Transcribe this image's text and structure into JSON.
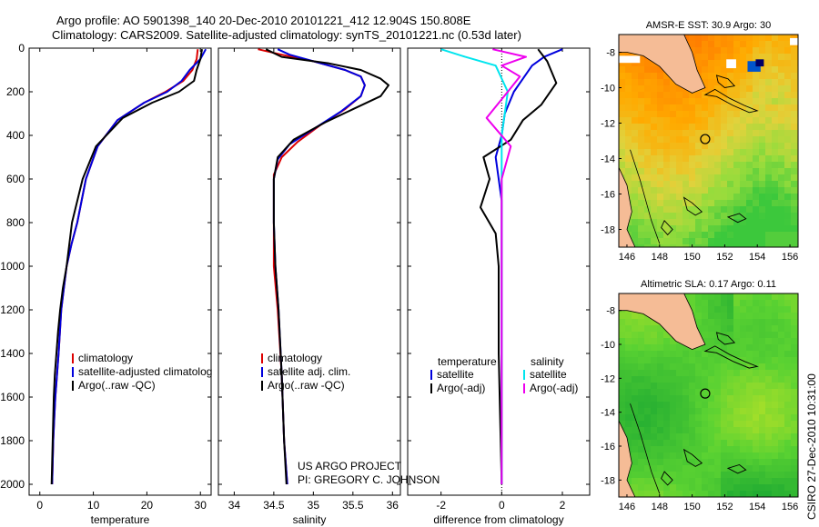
{
  "header": {
    "line1": "Argo profile: AO 5901398_140 20-Dec-2010 20101221_412 12.904S 150.808E",
    "line2": "Climatology: CARS2009. Satellite-adjusted climatology: synTS_20101221.nc (0.53d later)"
  },
  "credits": {
    "project": "US ARGO PROJECT",
    "pi": "PI: GREGORY C. JOHNSON",
    "stamp": "CSIRO 27-Dec-2010 10:31:00"
  },
  "colors": {
    "climatology": "#dd0000",
    "satellite": "#0000dd",
    "argo": "#000000",
    "sat_salinity": "#00e5ee",
    "argo_salinity": "#ee00ee"
  },
  "chart_data": [
    {
      "type": "line",
      "id": "temperature",
      "xlabel": "temperature",
      "ylabel": "",
      "xlim": [
        -2,
        32
      ],
      "ylim": [
        2050,
        0
      ],
      "xticks": [
        0,
        10,
        20,
        30
      ],
      "yticks": [
        0,
        200,
        400,
        600,
        800,
        1000,
        1200,
        1400,
        1600,
        1800,
        2000
      ],
      "legend": [
        "climatology",
        "satellite-adjusted climatolog",
        "Argo(..raw -QC)"
      ],
      "series": [
        {
          "name": "climatology",
          "color": "#dd0000",
          "x": [
            29.5,
            29.3,
            28.5,
            26.8,
            23.5,
            19.5,
            14.5,
            10.8,
            8.6,
            7.0,
            5.9,
            5.0,
            4.5,
            4.0,
            3.5,
            3.2,
            2.9,
            2.7,
            2.5,
            2.3
          ],
          "y": [
            5,
            50,
            100,
            150,
            200,
            250,
            330,
            450,
            600,
            800,
            900,
            1000,
            1100,
            1200,
            1400,
            1500,
            1600,
            1700,
            1800,
            2000
          ]
        },
        {
          "name": "satellite-adjusted climatolog",
          "color": "#0000dd",
          "x": [
            31.0,
            30.0,
            28.0,
            26.5,
            23.8,
            19.5,
            14.5,
            10.8,
            8.6,
            7.0,
            5.9,
            5.0,
            4.5,
            4.0,
            3.5,
            3.2,
            2.9,
            2.7,
            2.5,
            2.3
          ],
          "y": [
            5,
            50,
            100,
            150,
            200,
            250,
            330,
            450,
            600,
            800,
            900,
            1000,
            1100,
            1200,
            1400,
            1500,
            1600,
            1700,
            1800,
            2000
          ]
        },
        {
          "name": "Argo(..raw -QC)",
          "color": "#000000",
          "x": [
            30.3,
            30.0,
            29.3,
            28.8,
            26.0,
            21.0,
            15.5,
            10.5,
            8.0,
            6.0,
            5.0,
            4.3,
            3.8,
            3.4,
            3.1,
            2.8,
            2.6,
            2.4,
            2.2
          ],
          "y": [
            5,
            50,
            100,
            150,
            200,
            250,
            320,
            450,
            600,
            800,
            1000,
            1100,
            1200,
            1300,
            1400,
            1500,
            1600,
            1800,
            2000
          ]
        }
      ]
    },
    {
      "type": "line",
      "id": "salinity",
      "xlabel": "salinity",
      "ylabel": "",
      "xlim": [
        33.8,
        36.1
      ],
      "ylim": [
        2050,
        0
      ],
      "xticks": [
        34,
        34.5,
        35,
        35.5,
        36
      ],
      "legend": [
        "climatology",
        "satellite adj. clim.",
        "Argo(..raw -QC)"
      ],
      "series": [
        {
          "name": "climatology",
          "color": "#dd0000",
          "x": [
            34.3,
            34.6,
            35.0,
            35.4,
            35.6,
            35.65,
            35.6,
            35.4,
            35.1,
            34.8,
            34.6,
            34.5,
            34.5,
            34.5,
            34.55,
            34.6,
            34.63,
            34.67
          ],
          "y": [
            5,
            30,
            60,
            100,
            130,
            170,
            220,
            280,
            350,
            430,
            500,
            580,
            800,
            1000,
            1200,
            1500,
            1800,
            2000
          ]
        },
        {
          "name": "satellite adj. clim.",
          "color": "#0000dd",
          "x": [
            34.55,
            34.7,
            35.0,
            35.4,
            35.6,
            35.65,
            35.6,
            35.35,
            35.05,
            34.7,
            34.55,
            34.5,
            34.5,
            34.52,
            34.56,
            34.6,
            34.63,
            34.67
          ],
          "y": [
            5,
            30,
            60,
            100,
            130,
            170,
            220,
            290,
            360,
            440,
            510,
            600,
            800,
            1000,
            1200,
            1500,
            1800,
            2000
          ]
        },
        {
          "name": "Argo(..raw -QC)",
          "color": "#000000",
          "x": [
            34.4,
            34.6,
            35.2,
            35.6,
            35.85,
            35.95,
            35.85,
            35.5,
            35.15,
            34.75,
            34.55,
            34.5,
            34.5,
            34.52,
            34.56,
            34.6,
            34.63,
            34.66
          ],
          "y": [
            5,
            40,
            70,
            100,
            140,
            170,
            220,
            280,
            340,
            420,
            500,
            600,
            800,
            1000,
            1200,
            1500,
            1800,
            2000
          ]
        }
      ]
    },
    {
      "type": "line",
      "id": "difference",
      "xlabel": "difference from climatology",
      "ylabel": "",
      "xlim": [
        -3.1,
        2.9
      ],
      "ylim": [
        2050,
        0
      ],
      "xticks": [
        -2,
        0,
        2
      ],
      "legend_left": {
        "title": "temperature",
        "items": [
          "satellite",
          "Argo(-adj)"
        ]
      },
      "legend_right": {
        "title": "salinity",
        "items": [
          "satellite",
          "Argo(-adj)"
        ]
      },
      "series": [
        {
          "name": "temperature satellite",
          "color": "#0000dd",
          "x": [
            2.0,
            1.4,
            1.0,
            0.8,
            0.6,
            0.4,
            0.1,
            0.0,
            -0.2,
            0.0,
            0.0,
            0.0,
            0.0,
            0.0
          ],
          "y": [
            5,
            40,
            80,
            120,
            160,
            200,
            300,
            400,
            500,
            700,
            1000,
            1400,
            1800,
            2000
          ]
        },
        {
          "name": "temperature Argo(-adj)",
          "color": "#000000",
          "x": [
            1.2,
            1.5,
            1.8,
            1.3,
            0.7,
            0.3,
            -0.6,
            -0.4,
            -0.7,
            -0.2,
            -0.1,
            -0.1,
            0.0
          ],
          "y": [
            5,
            60,
            160,
            260,
            330,
            420,
            500,
            600,
            730,
            850,
            1000,
            1400,
            2000
          ]
        },
        {
          "name": "salinity satellite",
          "color": "#00e5ee",
          "x": [
            -2.0,
            -1.2,
            -0.2,
            0.2,
            0.0,
            0.0,
            0.0,
            0.0,
            0.0
          ],
          "y": [
            5,
            40,
            80,
            200,
            400,
            700,
            1000,
            1500,
            2000
          ]
        },
        {
          "name": "salinity Argo(-adj)",
          "color": "#ee00ee",
          "x": [
            -0.3,
            0.8,
            0.0,
            0.6,
            0.2,
            -0.5,
            0.3,
            0.0,
            0.0,
            0.0
          ],
          "y": [
            5,
            40,
            80,
            130,
            200,
            320,
            450,
            600,
            1000,
            2000
          ]
        }
      ]
    }
  ],
  "maps": [
    {
      "title": "AMSR-E SST: 30.9 Argo: 30",
      "xticks": [
        "146",
        "148",
        "150",
        "152",
        "154",
        "156"
      ],
      "yticks": [
        "-8",
        "-10",
        "-12",
        "-14",
        "-16",
        "-18"
      ],
      "xlim": [
        145.5,
        156.5
      ],
      "ylim": [
        -19,
        -7
      ],
      "argo_lon": 150.8,
      "argo_lat": -12.9,
      "colorscheme": "sst"
    },
    {
      "title": "Altimetric SLA: 0.17 Argo: 0.11",
      "xticks": [
        "146",
        "148",
        "150",
        "152",
        "154",
        "156"
      ],
      "yticks": [
        "-8",
        "-10",
        "-12",
        "-14",
        "-16",
        "-18"
      ],
      "xlim": [
        145.5,
        156.5
      ],
      "ylim": [
        -19,
        -7
      ],
      "argo_lon": 150.8,
      "argo_lat": -12.9,
      "colorscheme": "sla"
    }
  ]
}
